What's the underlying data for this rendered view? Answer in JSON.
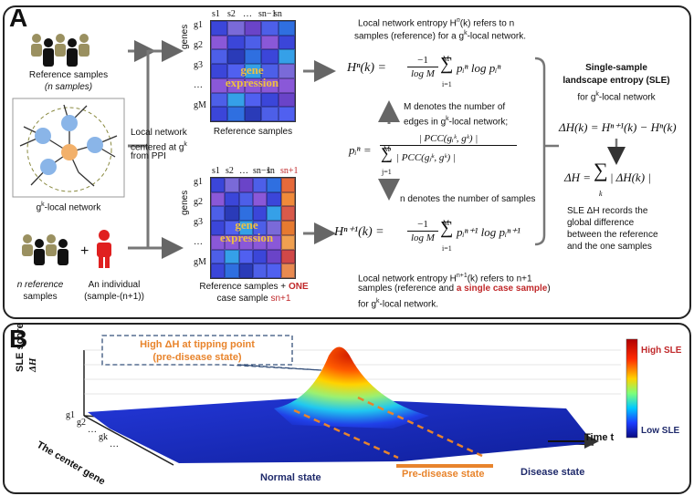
{
  "panel_a": {
    "label": "A",
    "ref_people_label_1": "Reference samples",
    "ref_people_label_2": "(n samples)",
    "local_net_label": "g",
    "local_net_sup": "k",
    "local_net_suffix": "-local network",
    "net_note_1": "Local network",
    "net_note_2": "centered at g",
    "net_note_2_sup": "k",
    "net_note_3": "from PPI",
    "n_ref_1": "n reference",
    "n_ref_2": "samples",
    "individual_1": "An individual",
    "individual_2": "(sample-(n+1))",
    "plus": "+",
    "genes_label": "genes",
    "sample_cols_top": [
      "s1",
      "s2",
      "…",
      "sn−1",
      "sn"
    ],
    "sample_cols_bottom": [
      "s1",
      "s2",
      "…",
      "sn−1",
      "sn",
      "sn+1"
    ],
    "gene_rows": [
      "g1",
      "g2",
      "g3",
      "…",
      "gM"
    ],
    "gene_expr_1": "gene",
    "gene_expr_2": "expression",
    "ref_matrix_caption": "Reference samples",
    "case_caption_1": "Reference samples + ",
    "case_caption_one": "ONE",
    "case_caption_2": "case sample ",
    "case_caption_s": "sn+1",
    "entropy_top_1": "Local network entropy H",
    "entropy_top_1b": "n",
    "entropy_top_1c": "(k) refers to n",
    "entropy_top_2": "samples (reference)  for a g",
    "entropy_top_2_sup": "k",
    "entropy_top_2b": "-local network.",
    "m_note_1": "M denotes the number of",
    "m_note_2": "edges in g",
    "m_note_2_sup": "k",
    "m_note_2b": "-local network;",
    "n_note": "n denotes the number of samples",
    "entropy_bot_1": "Local network entropy H",
    "entropy_bot_1b": "n+1",
    "entropy_bot_1c": "(k) refers to n+1",
    "entropy_bot_2": "samples (reference and ",
    "entropy_bot_2_red": "a single case sample",
    "entropy_bot_2c": ")",
    "entropy_bot_3": "for g",
    "entropy_bot_3_sup": "k",
    "entropy_bot_3b": "-local network.",
    "sle_title_1": "Single-sample",
    "sle_title_2": "landscape entropy (SLE)",
    "sle_title_3": "for g",
    "sle_title_3_sup": "k",
    "sle_title_3b": "-local network",
    "sle_desc_1": "SLE ΔH records the",
    "sle_desc_2": "global difference",
    "sle_desc_3": "between the reference",
    "sle_desc_4": "and the one samples",
    "eq_hn": "Hⁿ(k) = ",
    "eq_frac_num": "−1",
    "eq_frac_den": "log M",
    "eq_sum_top": "M",
    "eq_sum_bot": "i=1",
    "eq_hn_term": "pᵢⁿ log pᵢⁿ",
    "eq_hn1": "Hⁿ⁺¹(k) = ",
    "eq_hn1_term": "pᵢⁿ⁺¹ log pᵢⁿ⁺¹",
    "eq_p_lhs": "pᵢⁿ = ",
    "eq_p_num": "| PCC(gᵢᵏ, gᵏ) |",
    "eq_p_den": "| PCC(gⱼᵏ, gᵏ) |",
    "eq_p_sum_bot": "j=1",
    "eq_dh": "ΔH(k) = Hⁿ⁺¹(k) − Hⁿ(k)",
    "eq_dh_total": "ΔH = ",
    "eq_dh_total_term": "| ΔH(k) |",
    "eq_dh_total_sub": "k"
  },
  "panel_b": {
    "label": "B",
    "ylabel_1": "SLE score",
    "ylabel_2": "ΔH",
    "callout_1": "High ΔH at tipping point",
    "callout_2": "(pre-disease state)",
    "colorbar_high": "High SLE",
    "colorbar_low": "Low SLE",
    "time_label": "Time t",
    "center_gene_label": "The center gene",
    "gene_ticks": [
      "g1",
      "g2",
      "…",
      "gk",
      "…"
    ],
    "normal_state": "Normal state",
    "predisease_state": "Pre-disease state",
    "disease_state": "Disease state"
  },
  "colors": {
    "red": "#c0282a",
    "orange": "#e8842c",
    "navy": "#1f2a6b",
    "callout_border": "#35507a",
    "matrix_blue": "#3b46d9",
    "matrix_purple": "#6a44c8"
  }
}
